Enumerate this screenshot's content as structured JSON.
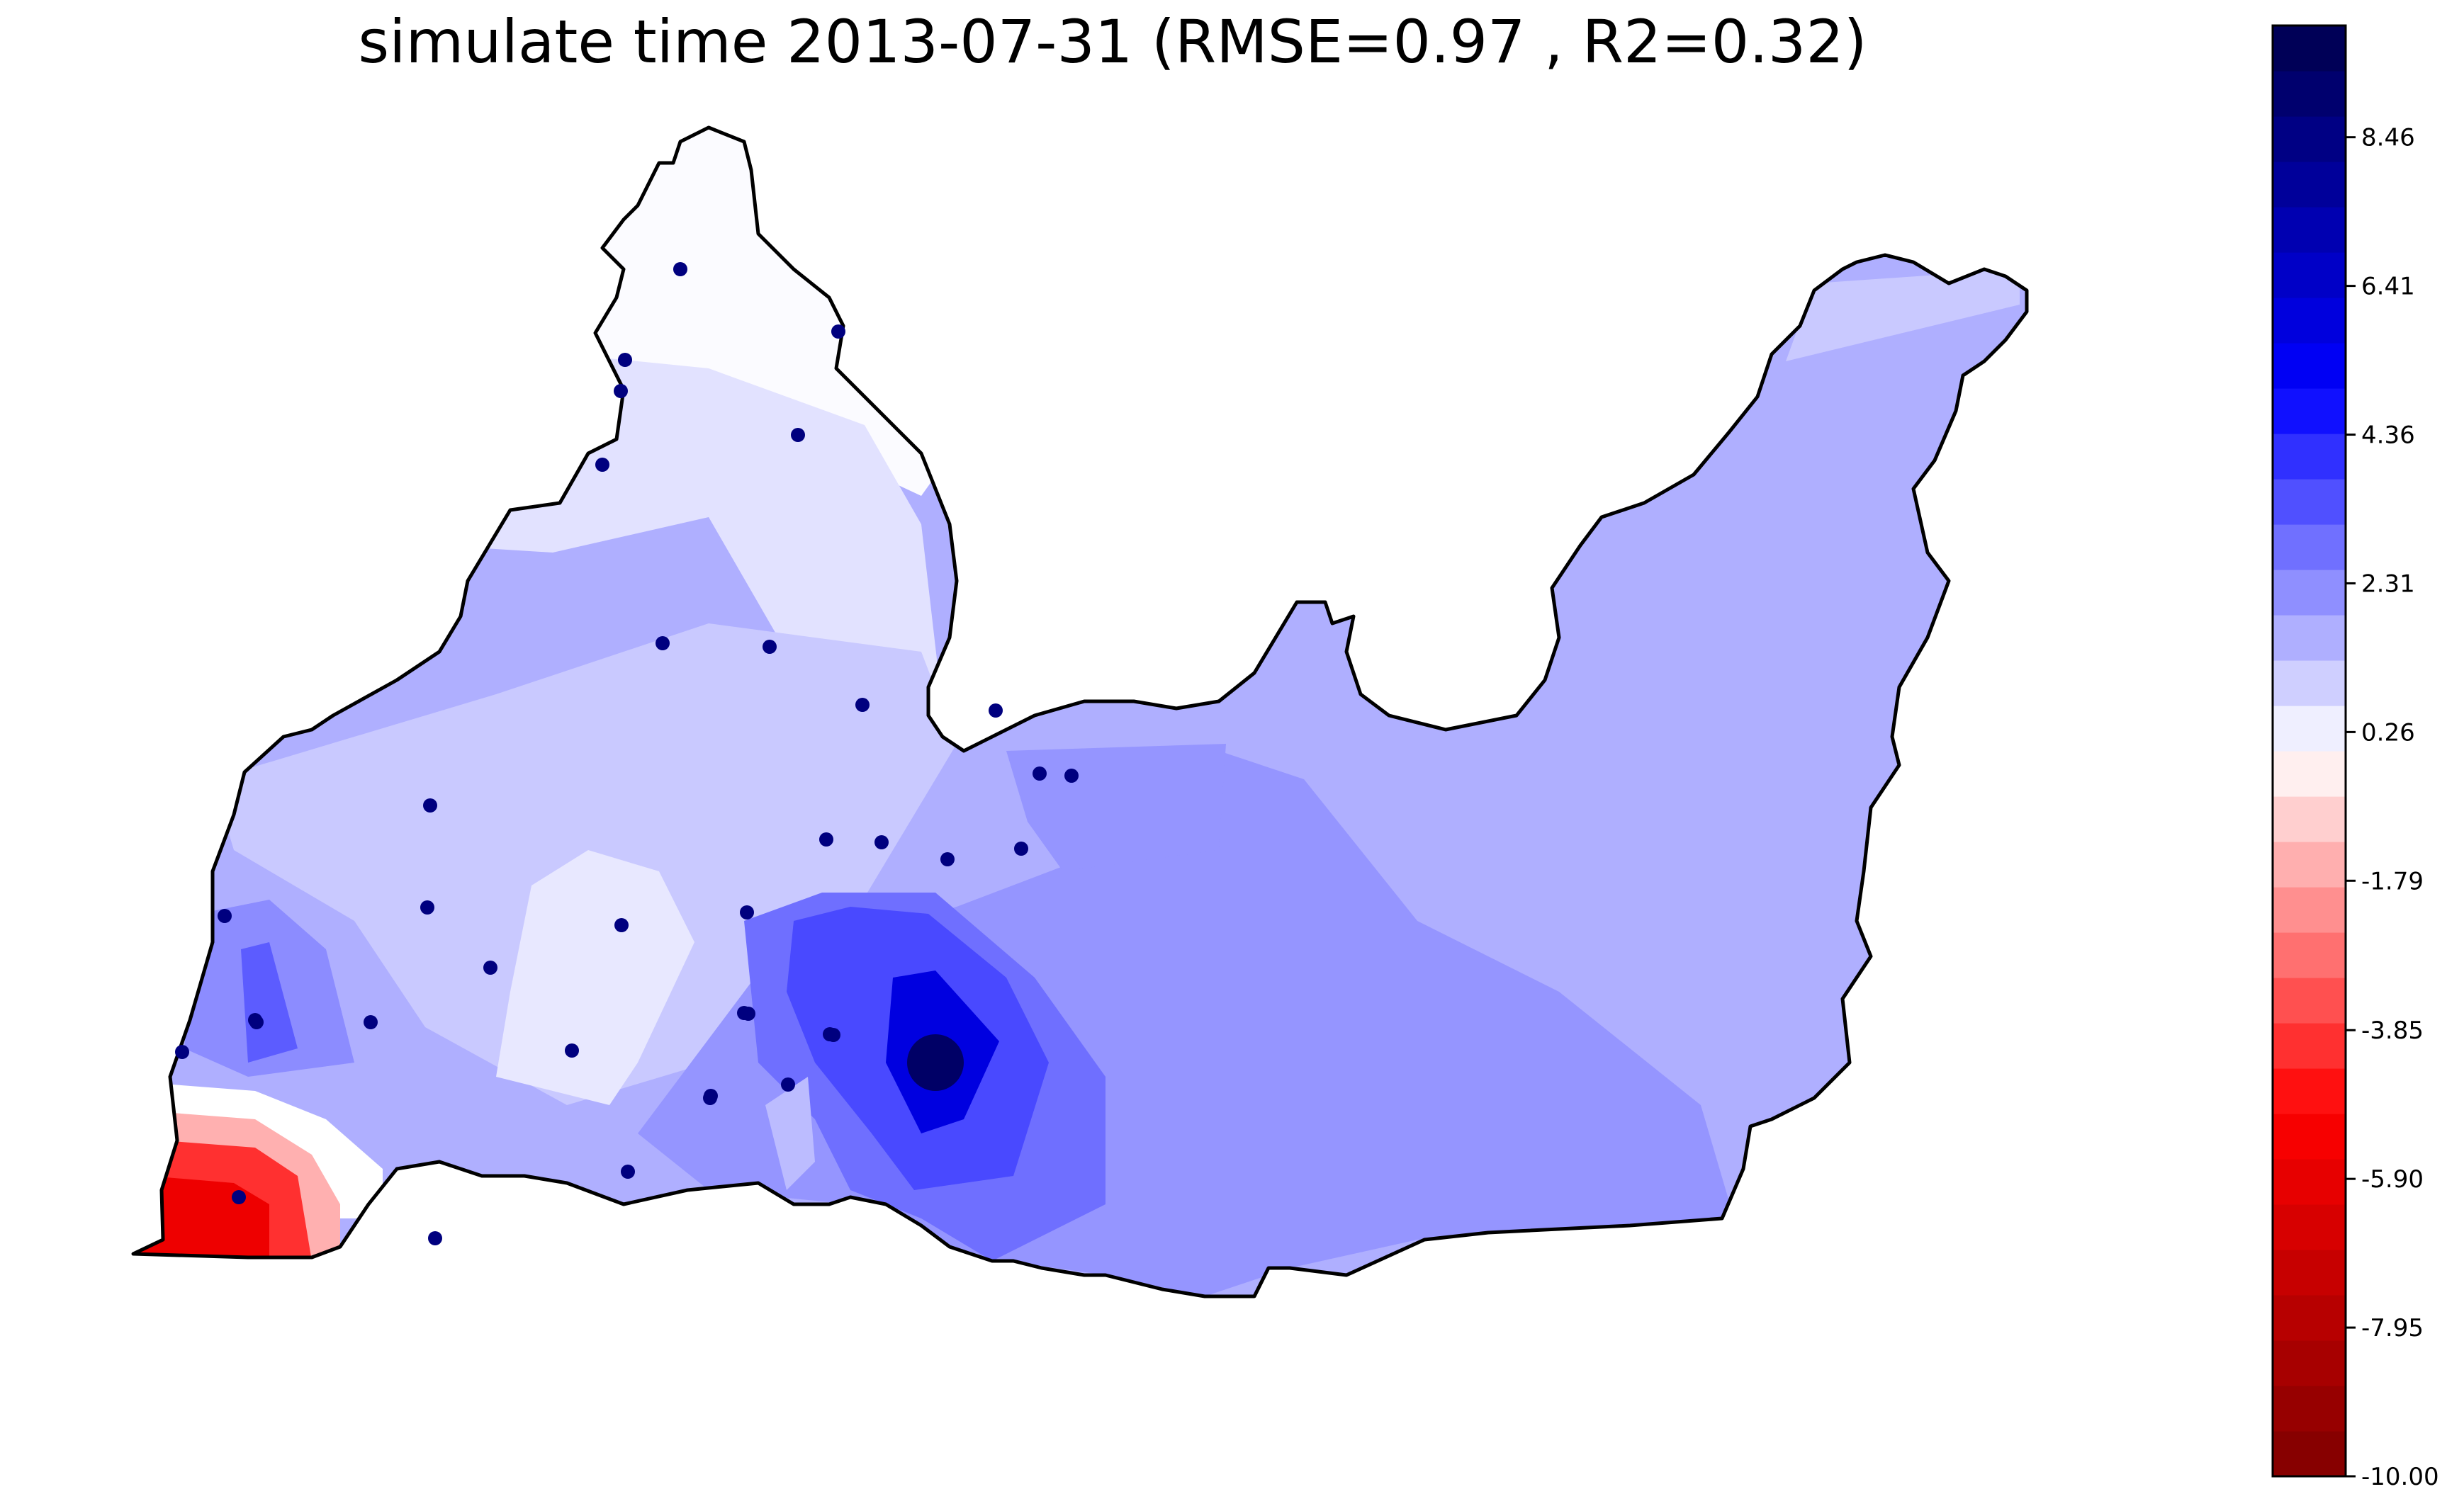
{
  "chart_data": {
    "type": "heatmap",
    "title": "simulate time 2013-07-31 (RMSE=0.97 , R2=0.32)",
    "xlabel": "",
    "ylabel": "",
    "colorbar": {
      "min": -10.0,
      "max": 10.0,
      "levels": 32,
      "ticks": [
        -10.0,
        -7.95,
        -5.9,
        -3.85,
        -1.79,
        0.26,
        2.31,
        4.36,
        6.41,
        8.46
      ],
      "tick_labels": [
        "-10.00",
        "-7.95",
        "-5.90",
        "-3.85",
        "-1.79",
        "0.26",
        "2.31",
        "4.36",
        "6.41",
        "8.46"
      ],
      "colormap": "seismic_r",
      "low_color": "#7f0000",
      "mid_color": "#ffffff",
      "high_color": "#00004c"
    },
    "stations": {
      "count": 37,
      "marker_color": "#00007f"
    },
    "grid": false,
    "axes_visible": false
  }
}
